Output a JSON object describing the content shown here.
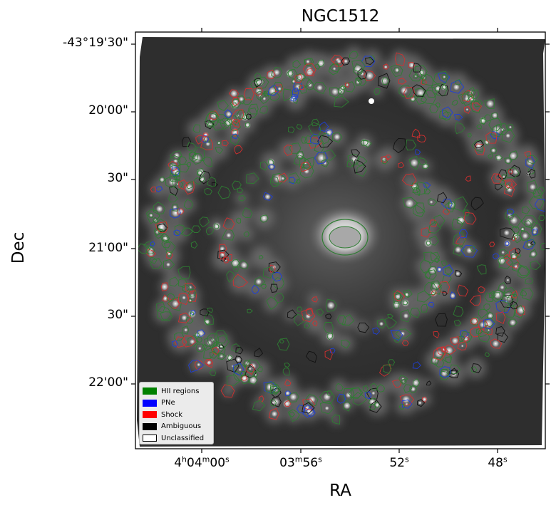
{
  "title": "NGC1512",
  "xlabel": "RA",
  "ylabel": "Dec",
  "y_ticks": [
    "-43°19'30\"",
    "20'00\"",
    "30\"",
    "21'00\"",
    "30\"",
    "22'00\""
  ],
  "x_ticks": [
    {
      "main": "4",
      "sup1": "h",
      "mid": "04",
      "sup2": "m",
      "end": "00",
      "sup3": "s"
    },
    {
      "main": "03",
      "sup1": "m",
      "mid": "56",
      "sup2": "s",
      "end": "",
      "sup3": ""
    },
    {
      "main": "52",
      "sup1": "s",
      "mid": "",
      "sup2": "",
      "end": "",
      "sup3": ""
    },
    {
      "main": "48",
      "sup1": "s",
      "mid": "",
      "sup2": "",
      "end": "",
      "sup3": ""
    }
  ],
  "legend": [
    {
      "label": "HII regions",
      "color": "#008000"
    },
    {
      "label": "PNe",
      "color": "#0000ff"
    },
    {
      "label": "Shock",
      "color": "#ff0000"
    },
    {
      "label": "Ambiguous",
      "color": "#000000"
    },
    {
      "label": "Unclassified",
      "color": "#ffffff"
    }
  ]
}
